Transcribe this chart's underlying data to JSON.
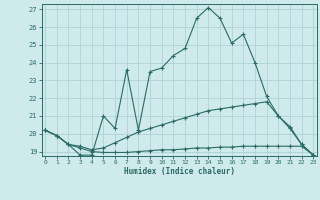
{
  "xlabel": "Humidex (Indice chaleur)",
  "x_values": [
    0,
    1,
    2,
    3,
    4,
    5,
    6,
    7,
    8,
    9,
    10,
    11,
    12,
    13,
    14,
    15,
    16,
    17,
    18,
    19,
    20,
    21,
    22,
    23
  ],
  "line1": [
    20.2,
    19.9,
    19.4,
    18.8,
    18.8,
    21.0,
    20.3,
    23.6,
    20.2,
    23.5,
    23.7,
    24.4,
    24.8,
    26.5,
    27.1,
    26.5,
    25.1,
    25.6,
    24.0,
    22.1,
    21.0,
    20.3,
    19.4,
    18.8
  ],
  "line2": [
    20.2,
    19.9,
    19.4,
    19.3,
    19.1,
    19.2,
    19.5,
    19.8,
    20.1,
    20.3,
    20.5,
    20.7,
    20.9,
    21.1,
    21.3,
    21.4,
    21.5,
    21.6,
    21.7,
    21.8,
    21.0,
    20.4,
    19.4,
    18.8
  ],
  "line3": [
    20.2,
    19.9,
    19.4,
    19.2,
    19.0,
    18.95,
    18.95,
    18.95,
    19.0,
    19.05,
    19.1,
    19.1,
    19.15,
    19.2,
    19.2,
    19.25,
    19.25,
    19.3,
    19.3,
    19.3,
    19.3,
    19.3,
    19.3,
    18.8
  ],
  "line_color": "#2a6b62",
  "bg_color": "#ceeaea",
  "grid_color": "#aacece",
  "ylim_min": 18.75,
  "ylim_max": 27.3,
  "yticks": [
    19,
    20,
    21,
    22,
    23,
    24,
    25,
    26,
    27
  ],
  "xlim_min": -0.3,
  "xlim_max": 23.3
}
